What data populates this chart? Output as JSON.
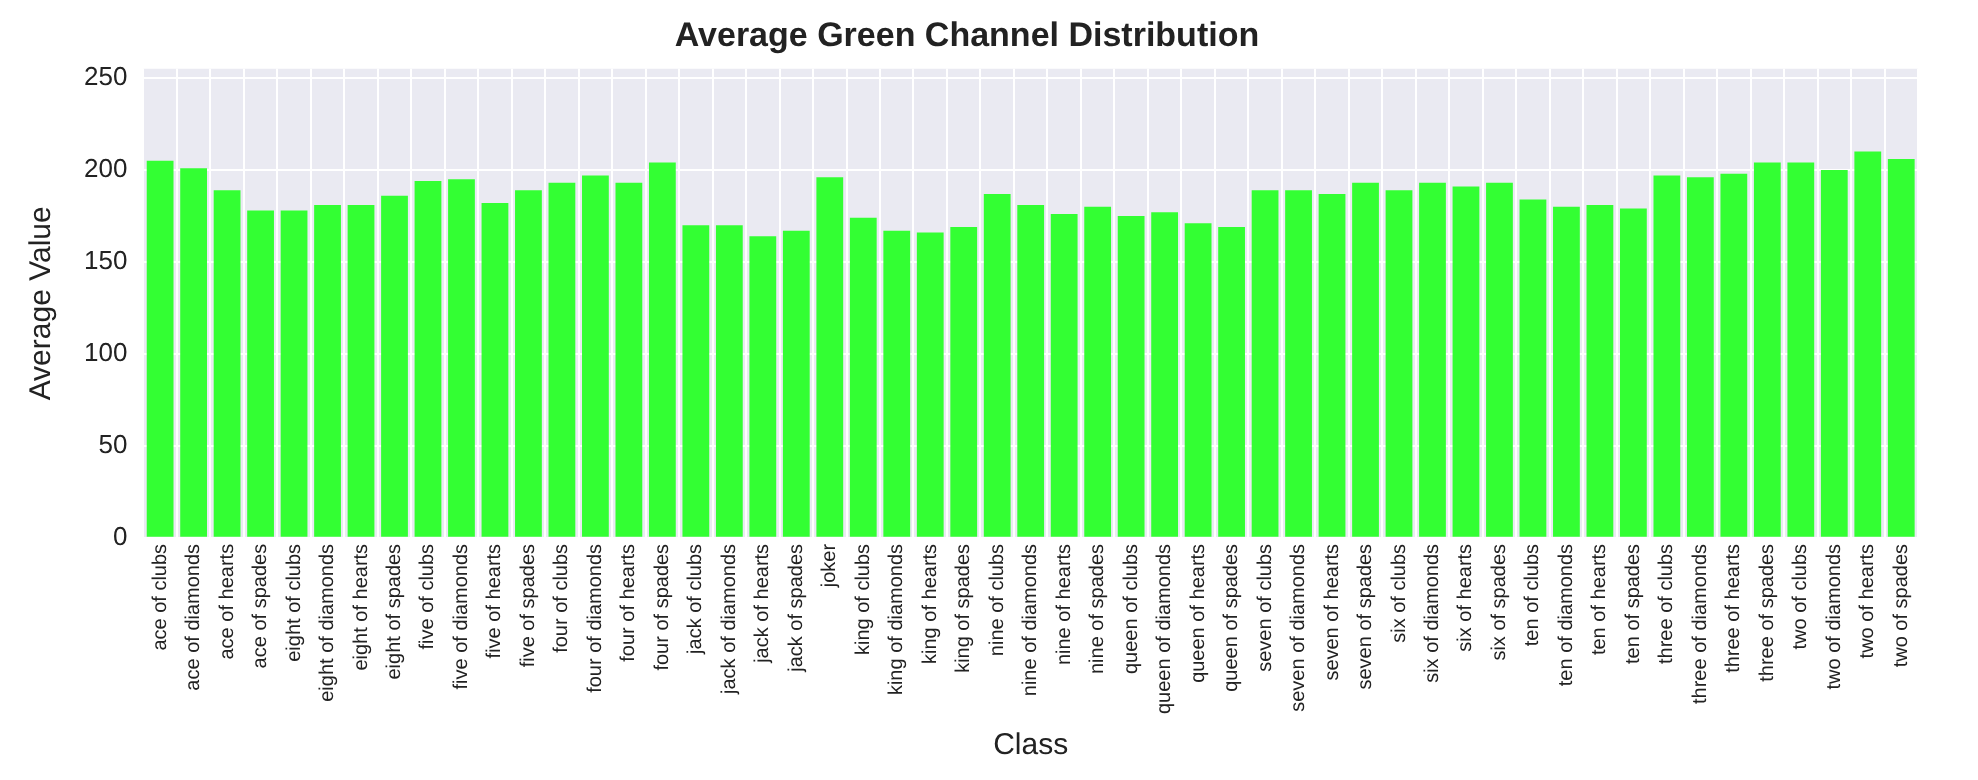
{
  "chart_data": {
    "type": "bar",
    "title": "Average Green Channel Distribution",
    "xlabel": "Class",
    "ylabel": "Average Value",
    "categories": [
      "ace of clubs",
      "ace of diamonds",
      "ace of hearts",
      "ace of spades",
      "eight of clubs",
      "eight of diamonds",
      "eight of hearts",
      "eight of spades",
      "five of clubs",
      "five of diamonds",
      "five of hearts",
      "five of spades",
      "four of clubs",
      "four of diamonds",
      "four of hearts",
      "four of spades",
      "jack of clubs",
      "jack of diamonds",
      "jack of hearts",
      "jack of spades",
      "joker",
      "king of clubs",
      "king of diamonds",
      "king of hearts",
      "king of spades",
      "nine of clubs",
      "nine of diamonds",
      "nine of hearts",
      "nine of spades",
      "queen of clubs",
      "queen of diamonds",
      "queen of hearts",
      "queen of spades",
      "seven of clubs",
      "seven of diamonds",
      "seven of hearts",
      "seven of spades",
      "six of clubs",
      "six of diamonds",
      "six of hearts",
      "six of spades",
      "ten of clubs",
      "ten of diamonds",
      "ten of hearts",
      "ten of spades",
      "three of clubs",
      "three of diamonds",
      "three of hearts",
      "three of spades",
      "two of clubs",
      "two of diamonds",
      "two of hearts",
      "two of spades"
    ],
    "values": [
      205,
      201,
      189,
      178,
      178,
      181,
      181,
      186,
      194,
      195,
      182,
      189,
      193,
      197,
      193,
      204,
      170,
      170,
      164,
      167,
      196,
      174,
      167,
      166,
      169,
      187,
      181,
      176,
      180,
      175,
      177,
      171,
      169,
      189,
      189,
      187,
      193,
      189,
      193,
      191,
      193,
      184,
      180,
      181,
      179,
      197,
      196,
      198,
      204,
      204,
      200,
      210,
      206
    ],
    "color": "#33ff33",
    "ylim": [
      0,
      255
    ],
    "yticks": [
      0,
      50,
      100,
      150,
      200,
      250
    ],
    "grid": true,
    "legend": false
  }
}
